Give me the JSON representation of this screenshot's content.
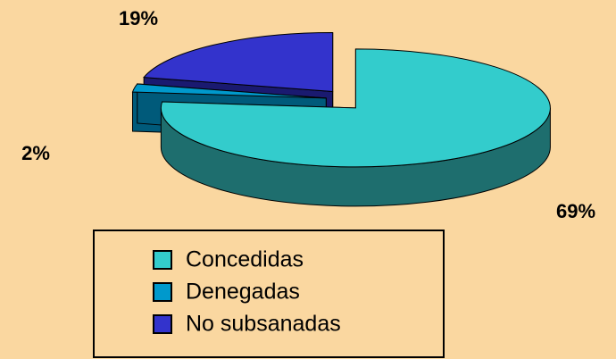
{
  "chart_data": {
    "type": "pie",
    "categories": [
      "Concedidas",
      "Denegadas",
      "No subsanadas"
    ],
    "values": [
      69,
      2,
      19
    ],
    "value_labels": [
      "69%",
      "2%",
      "19%"
    ],
    "colors": [
      "#33CCCC",
      "#0099CC",
      "#3333CC"
    ],
    "side_colors": [
      "#1E6E6E",
      "#005A7A",
      "#1A1A70"
    ]
  }
}
